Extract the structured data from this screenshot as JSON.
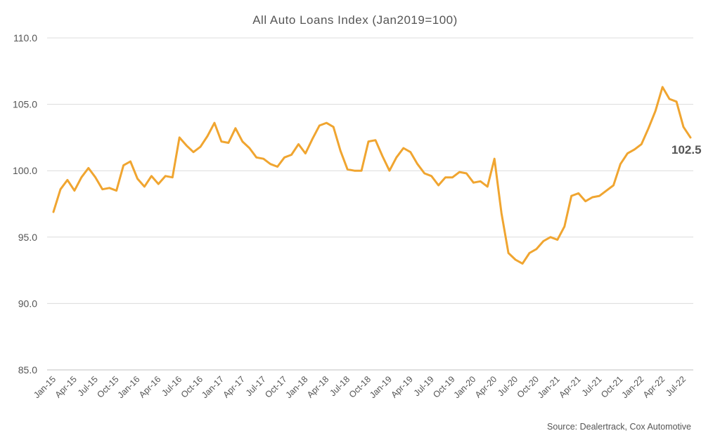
{
  "chart_data": {
    "type": "line",
    "title": "All Auto Loans Index (Jan2019=100)",
    "xlabel": "",
    "ylabel": "",
    "ylim": [
      85,
      110
    ],
    "yticks": [
      "85.0",
      "90.0",
      "95.0",
      "100.0",
      "105.0",
      "110.0"
    ],
    "grid": true,
    "legend": "none",
    "x": [
      "Jan-15",
      "Feb-15",
      "Mar-15",
      "Apr-15",
      "May-15",
      "Jun-15",
      "Jul-15",
      "Aug-15",
      "Sep-15",
      "Oct-15",
      "Nov-15",
      "Dec-15",
      "Jan-16",
      "Feb-16",
      "Mar-16",
      "Apr-16",
      "May-16",
      "Jun-16",
      "Jul-16",
      "Aug-16",
      "Sep-16",
      "Oct-16",
      "Nov-16",
      "Dec-16",
      "Jan-17",
      "Feb-17",
      "Mar-17",
      "Apr-17",
      "May-17",
      "Jun-17",
      "Jul-17",
      "Aug-17",
      "Sep-17",
      "Oct-17",
      "Nov-17",
      "Dec-17",
      "Jan-18",
      "Feb-18",
      "Mar-18",
      "Apr-18",
      "May-18",
      "Jun-18",
      "Jul-18",
      "Aug-18",
      "Sep-18",
      "Oct-18",
      "Nov-18",
      "Dec-18",
      "Jan-19",
      "Feb-19",
      "Mar-19",
      "Apr-19",
      "May-19",
      "Jun-19",
      "Jul-19",
      "Aug-19",
      "Sep-19",
      "Oct-19",
      "Nov-19",
      "Dec-19",
      "Jan-20",
      "Feb-20",
      "Mar-20",
      "Apr-20",
      "May-20",
      "Jun-20",
      "Jul-20",
      "Aug-20",
      "Sep-20",
      "Oct-20",
      "Nov-20",
      "Dec-20",
      "Jan-21",
      "Feb-21",
      "Mar-21",
      "Apr-21",
      "May-21",
      "Jun-21",
      "Jul-21",
      "Aug-21",
      "Sep-21",
      "Oct-21",
      "Nov-21",
      "Dec-21",
      "Jan-22",
      "Feb-22",
      "Mar-22",
      "Apr-22",
      "May-22",
      "Jun-22",
      "Jul-22",
      "Aug-22"
    ],
    "xtick_labels": [
      "Jan-15",
      "Apr-15",
      "Jul-15",
      "Oct-15",
      "Jan-16",
      "Apr-16",
      "Jul-16",
      "Oct-16",
      "Jan-17",
      "Apr-17",
      "Jul-17",
      "Oct-17",
      "Jan-18",
      "Apr-18",
      "Jul-18",
      "Oct-18",
      "Jan-19",
      "Apr-19",
      "Jul-19",
      "Oct-19",
      "Jan-20",
      "Apr-20",
      "Jul-20",
      "Oct-20",
      "Jan-21",
      "Apr-21",
      "Jul-21",
      "Oct-21",
      "Jan-22",
      "Apr-22",
      "Jul-22"
    ],
    "series": [
      {
        "color": "#f0a530",
        "values": [
          96.9,
          98.6,
          99.3,
          98.5,
          99.5,
          100.2,
          99.5,
          98.6,
          98.7,
          98.5,
          100.4,
          100.7,
          99.4,
          98.8,
          99.6,
          99.0,
          99.6,
          99.5,
          102.5,
          101.9,
          101.4,
          101.8,
          102.6,
          103.6,
          102.2,
          102.1,
          103.2,
          102.2,
          101.7,
          101.0,
          100.9,
          100.5,
          100.3,
          101.0,
          101.2,
          102.0,
          101.3,
          102.4,
          103.4,
          103.6,
          103.3,
          101.5,
          100.1,
          100.0,
          100.0,
          102.2,
          102.3,
          101.1,
          100.0,
          101.0,
          101.7,
          101.4,
          100.5,
          99.8,
          99.6,
          98.9,
          99.5,
          99.5,
          99.9,
          99.8,
          99.1,
          99.2,
          98.8,
          100.9,
          96.8,
          93.8,
          93.3,
          93.0,
          93.8,
          94.1,
          94.7,
          95.0,
          94.8,
          95.8,
          98.1,
          98.3,
          97.7,
          98.0,
          98.1,
          98.5,
          98.9,
          100.5,
          101.3,
          101.6,
          102.0,
          103.2,
          104.5,
          106.3,
          105.4,
          105.2,
          103.3,
          102.5
        ]
      }
    ],
    "end_label": "102.5",
    "source": "Source: Dealertrack, Cox Automotive"
  }
}
